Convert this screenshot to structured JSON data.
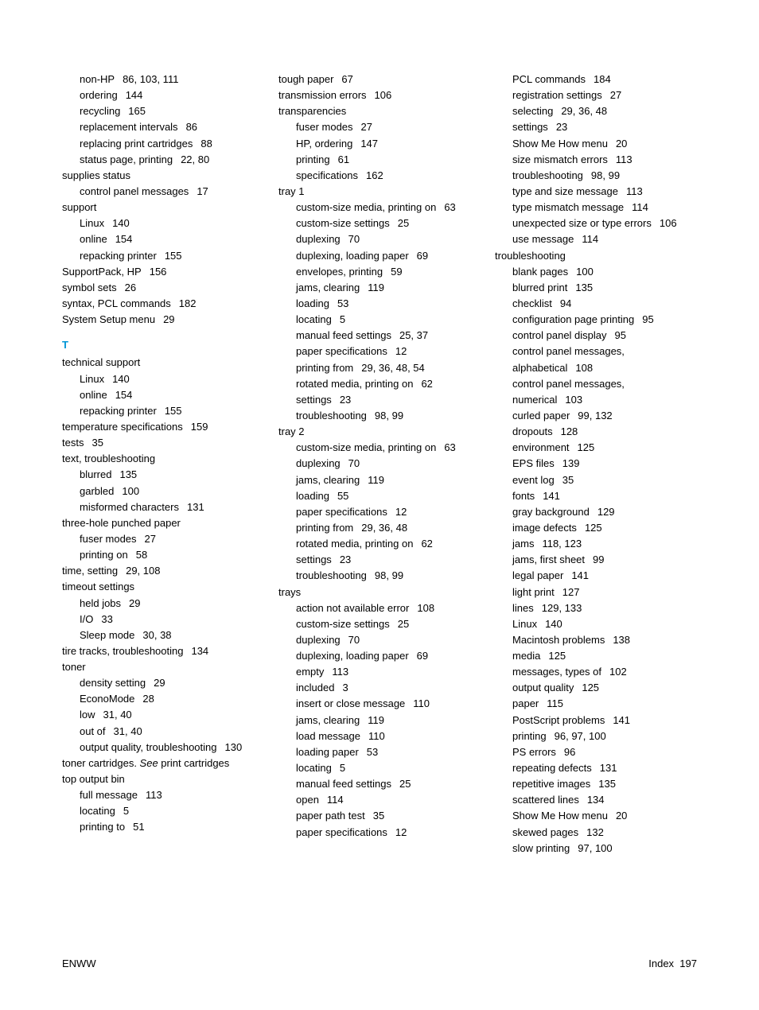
{
  "col1": [
    {
      "lvl": 1,
      "t": "non-HP",
      "p": "86,  103,  111"
    },
    {
      "lvl": 1,
      "t": "ordering",
      "p": "144"
    },
    {
      "lvl": 1,
      "t": "recycling",
      "p": "165"
    },
    {
      "lvl": 1,
      "t": "replacement intervals",
      "p": "86"
    },
    {
      "lvl": 1,
      "t": "replacing print cartridges",
      "p": "88"
    },
    {
      "lvl": 1,
      "t": "status page, printing",
      "p": "22,  80"
    },
    {
      "lvl": 0,
      "t": "supplies status",
      "p": ""
    },
    {
      "lvl": 1,
      "t": "control panel messages",
      "p": "17"
    },
    {
      "lvl": 0,
      "t": "support",
      "p": ""
    },
    {
      "lvl": 1,
      "t": "Linux",
      "p": "140"
    },
    {
      "lvl": 1,
      "t": "online",
      "p": "154"
    },
    {
      "lvl": 1,
      "t": "repacking printer",
      "p": "155"
    },
    {
      "lvl": 0,
      "t": "SupportPack, HP",
      "p": "156"
    },
    {
      "lvl": 0,
      "t": "symbol sets",
      "p": "26"
    },
    {
      "lvl": 0,
      "t": "syntax, PCL commands",
      "p": "182"
    },
    {
      "lvl": 0,
      "t": "System Setup menu",
      "p": "29"
    },
    {
      "section": "T"
    },
    {
      "lvl": 0,
      "t": "technical support",
      "p": ""
    },
    {
      "lvl": 1,
      "t": "Linux",
      "p": "140"
    },
    {
      "lvl": 1,
      "t": "online",
      "p": "154"
    },
    {
      "lvl": 1,
      "t": "repacking printer",
      "p": "155"
    },
    {
      "lvl": 0,
      "t": "temperature specifications",
      "p": "159"
    },
    {
      "lvl": 0,
      "t": "tests",
      "p": "35"
    },
    {
      "lvl": 0,
      "t": "text, troubleshooting",
      "p": ""
    },
    {
      "lvl": 1,
      "t": "blurred",
      "p": "135"
    },
    {
      "lvl": 1,
      "t": "garbled",
      "p": "100"
    },
    {
      "lvl": 1,
      "t": "misformed characters",
      "p": "131"
    },
    {
      "lvl": 0,
      "t": "three-hole punched paper",
      "p": ""
    },
    {
      "lvl": 1,
      "t": "fuser modes",
      "p": "27"
    },
    {
      "lvl": 1,
      "t": "printing on",
      "p": "58"
    },
    {
      "lvl": 0,
      "t": "time, setting",
      "p": "29,  108"
    },
    {
      "lvl": 0,
      "t": "timeout settings",
      "p": ""
    },
    {
      "lvl": 1,
      "t": "held jobs",
      "p": "29"
    },
    {
      "lvl": 1,
      "t": "I/O",
      "p": "33"
    },
    {
      "lvl": 1,
      "t": "Sleep mode",
      "p": "30,  38"
    },
    {
      "lvl": 0,
      "t": "tire tracks, troubleshooting",
      "p": "134"
    },
    {
      "lvl": 0,
      "t": "toner",
      "p": ""
    },
    {
      "lvl": 1,
      "t": "density setting",
      "p": "29"
    },
    {
      "lvl": 1,
      "t": "EconoMode",
      "p": "28"
    },
    {
      "lvl": 1,
      "t": "low",
      "p": "31,  40"
    },
    {
      "lvl": 1,
      "t": "out of",
      "p": "31,  40"
    },
    {
      "lvl": 1,
      "t": "output quality, troubleshooting",
      "p": "130"
    },
    {
      "lvl": 0,
      "t": "toner cartridges. ",
      "see": "See",
      "rest": " print cartridges",
      "p": ""
    },
    {
      "lvl": 0,
      "t": "top output bin",
      "p": ""
    },
    {
      "lvl": 1,
      "t": "full message",
      "p": "113"
    },
    {
      "lvl": 1,
      "t": "locating",
      "p": "5"
    },
    {
      "lvl": 1,
      "t": "printing to",
      "p": "51"
    }
  ],
  "col2": [
    {
      "lvl": 0,
      "t": "tough paper",
      "p": "67"
    },
    {
      "lvl": 0,
      "t": "transmission errors",
      "p": "106"
    },
    {
      "lvl": 0,
      "t": "transparencies",
      "p": ""
    },
    {
      "lvl": 1,
      "t": "fuser modes",
      "p": "27"
    },
    {
      "lvl": 1,
      "t": "HP, ordering",
      "p": "147"
    },
    {
      "lvl": 1,
      "t": "printing",
      "p": "61"
    },
    {
      "lvl": 1,
      "t": "specifications",
      "p": "162"
    },
    {
      "lvl": 0,
      "t": "tray 1",
      "p": ""
    },
    {
      "lvl": 1,
      "t": "custom-size media, printing on",
      "p": "63"
    },
    {
      "lvl": 1,
      "t": "custom-size settings",
      "p": "25"
    },
    {
      "lvl": 1,
      "t": "duplexing",
      "p": "70"
    },
    {
      "lvl": 1,
      "t": "duplexing, loading paper",
      "p": "69"
    },
    {
      "lvl": 1,
      "t": "envelopes, printing",
      "p": "59"
    },
    {
      "lvl": 1,
      "t": "jams, clearing",
      "p": "119"
    },
    {
      "lvl": 1,
      "t": "loading",
      "p": "53"
    },
    {
      "lvl": 1,
      "t": "locating",
      "p": "5"
    },
    {
      "lvl": 1,
      "t": "manual feed settings",
      "p": "25,  37"
    },
    {
      "lvl": 1,
      "t": "paper specifications",
      "p": "12"
    },
    {
      "lvl": 1,
      "t": "printing from",
      "p": "29,  36,  48,  54"
    },
    {
      "lvl": 1,
      "t": "rotated media, printing on",
      "p": "62"
    },
    {
      "lvl": 1,
      "t": "settings",
      "p": "23"
    },
    {
      "lvl": 1,
      "t": "troubleshooting",
      "p": "98,  99"
    },
    {
      "lvl": 0,
      "t": "tray 2",
      "p": ""
    },
    {
      "lvl": 1,
      "t": "custom-size media, printing on",
      "p": "63"
    },
    {
      "lvl": 1,
      "t": "duplexing",
      "p": "70"
    },
    {
      "lvl": 1,
      "t": "jams, clearing",
      "p": "119"
    },
    {
      "lvl": 1,
      "t": "loading",
      "p": "55"
    },
    {
      "lvl": 1,
      "t": "paper specifications",
      "p": "12"
    },
    {
      "lvl": 1,
      "t": "printing from",
      "p": "29,  36,  48"
    },
    {
      "lvl": 1,
      "t": "rotated media, printing on",
      "p": "62"
    },
    {
      "lvl": 1,
      "t": "settings",
      "p": "23"
    },
    {
      "lvl": 1,
      "t": "troubleshooting",
      "p": "98,  99"
    },
    {
      "lvl": 0,
      "t": "trays",
      "p": ""
    },
    {
      "lvl": 1,
      "t": "action not available error",
      "p": "108"
    },
    {
      "lvl": 1,
      "t": "custom-size settings",
      "p": "25"
    },
    {
      "lvl": 1,
      "t": "duplexing",
      "p": "70"
    },
    {
      "lvl": 1,
      "t": "duplexing, loading paper",
      "p": "69"
    },
    {
      "lvl": 1,
      "t": "empty",
      "p": "113"
    },
    {
      "lvl": 1,
      "t": "included",
      "p": "3"
    },
    {
      "lvl": 1,
      "t": "insert or close message",
      "p": "110"
    },
    {
      "lvl": 1,
      "t": "jams, clearing",
      "p": "119"
    },
    {
      "lvl": 1,
      "t": "load message",
      "p": "110"
    },
    {
      "lvl": 1,
      "t": "loading paper",
      "p": "53"
    },
    {
      "lvl": 1,
      "t": "locating",
      "p": "5"
    },
    {
      "lvl": 1,
      "t": "manual feed settings",
      "p": "25"
    },
    {
      "lvl": 1,
      "t": "open",
      "p": "114"
    },
    {
      "lvl": 1,
      "t": "paper path test",
      "p": "35"
    },
    {
      "lvl": 1,
      "t": "paper specifications",
      "p": "12"
    }
  ],
  "col3": [
    {
      "lvl": 1,
      "t": "PCL commands",
      "p": "184"
    },
    {
      "lvl": 1,
      "t": "registration settings",
      "p": "27"
    },
    {
      "lvl": 1,
      "t": "selecting",
      "p": "29,  36,  48"
    },
    {
      "lvl": 1,
      "t": "settings",
      "p": "23"
    },
    {
      "lvl": 1,
      "t": "Show Me How menu",
      "p": "20"
    },
    {
      "lvl": 1,
      "t": "size mismatch errors",
      "p": "113"
    },
    {
      "lvl": 1,
      "t": "troubleshooting",
      "p": "98,  99"
    },
    {
      "lvl": 1,
      "t": "type and size message",
      "p": "113"
    },
    {
      "lvl": 1,
      "t": "type mismatch message",
      "p": "114"
    },
    {
      "lvl": 1,
      "t": "unexpected size or type errors",
      "p": "106"
    },
    {
      "lvl": 1,
      "t": "use message",
      "p": "114"
    },
    {
      "lvl": 0,
      "t": "troubleshooting",
      "p": ""
    },
    {
      "lvl": 1,
      "t": "blank pages",
      "p": "100"
    },
    {
      "lvl": 1,
      "t": "blurred print",
      "p": "135"
    },
    {
      "lvl": 1,
      "t": "checklist",
      "p": "94"
    },
    {
      "lvl": 1,
      "t": "configuration page printing",
      "p": "95"
    },
    {
      "lvl": 1,
      "t": "control panel display",
      "p": "95"
    },
    {
      "lvl": 1,
      "t": "control panel messages, alphabetical",
      "p": "108"
    },
    {
      "lvl": 1,
      "t": "control panel messages, numerical",
      "p": "103"
    },
    {
      "lvl": 1,
      "t": "curled paper",
      "p": "99,  132"
    },
    {
      "lvl": 1,
      "t": "dropouts",
      "p": "128"
    },
    {
      "lvl": 1,
      "t": "environment",
      "p": "125"
    },
    {
      "lvl": 1,
      "t": "EPS files",
      "p": "139"
    },
    {
      "lvl": 1,
      "t": "event log",
      "p": "35"
    },
    {
      "lvl": 1,
      "t": "fonts",
      "p": "141"
    },
    {
      "lvl": 1,
      "t": "gray background",
      "p": "129"
    },
    {
      "lvl": 1,
      "t": "image defects",
      "p": "125"
    },
    {
      "lvl": 1,
      "t": "jams",
      "p": "118,  123"
    },
    {
      "lvl": 1,
      "t": "jams, first sheet",
      "p": "99"
    },
    {
      "lvl": 1,
      "t": "legal paper",
      "p": "141"
    },
    {
      "lvl": 1,
      "t": "light print",
      "p": "127"
    },
    {
      "lvl": 1,
      "t": "lines",
      "p": "129,  133"
    },
    {
      "lvl": 1,
      "t": "Linux",
      "p": "140"
    },
    {
      "lvl": 1,
      "t": "Macintosh problems",
      "p": "138"
    },
    {
      "lvl": 1,
      "t": "media",
      "p": "125"
    },
    {
      "lvl": 1,
      "t": "messages, types of",
      "p": "102"
    },
    {
      "lvl": 1,
      "t": "output quality",
      "p": "125"
    },
    {
      "lvl": 1,
      "t": "paper",
      "p": "115"
    },
    {
      "lvl": 1,
      "t": "PostScript problems",
      "p": "141"
    },
    {
      "lvl": 1,
      "t": "printing",
      "p": "96,  97,  100"
    },
    {
      "lvl": 1,
      "t": "PS errors",
      "p": "96"
    },
    {
      "lvl": 1,
      "t": "repeating defects",
      "p": "131"
    },
    {
      "lvl": 1,
      "t": "repetitive images",
      "p": "135"
    },
    {
      "lvl": 1,
      "t": "scattered lines",
      "p": "134"
    },
    {
      "lvl": 1,
      "t": "Show Me How menu",
      "p": "20"
    },
    {
      "lvl": 1,
      "t": "skewed pages",
      "p": "132"
    },
    {
      "lvl": 1,
      "t": "slow printing",
      "p": "97,  100"
    }
  ],
  "footer": {
    "left": "ENWW",
    "right_label": "Index",
    "right_page": "197"
  }
}
